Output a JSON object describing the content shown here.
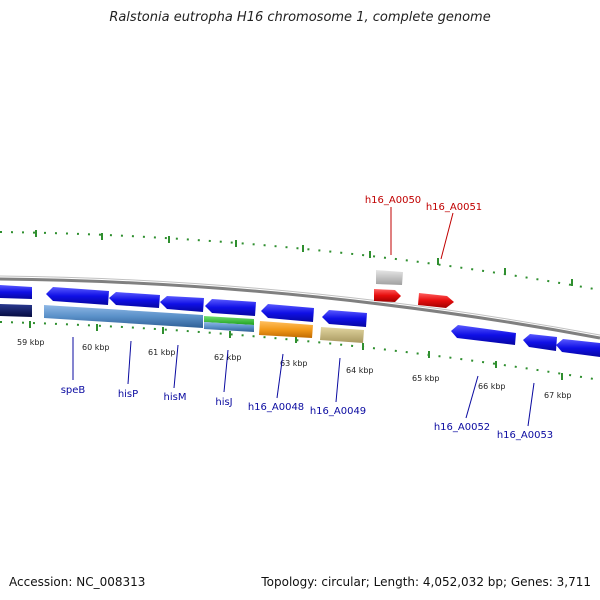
{
  "title": "Ralstonia eutropha H16 chromosome 1, complete genome",
  "footer": {
    "accession": "Accession: NC_008313",
    "summary": "Topology: circular; Length: 4,052,032 bp; Genes: 3,711"
  },
  "ruler": {
    "unit": "kbp",
    "labels": [
      "59 kbp",
      "60 kbp",
      "61 kbp",
      "62 kbp",
      "63 kbp",
      "64 kbp",
      "65 kbp",
      "66 kbp",
      "67 kbp"
    ]
  },
  "genes_reverse_strand": [
    "speB",
    "hisP",
    "hisM",
    "hisJ",
    "h16_A0048",
    "h16_A0049",
    "h16_A0052",
    "h16_A0053"
  ],
  "genes_forward_strand": [
    "h16_A0050",
    "h16_A0051"
  ],
  "colors": {
    "backbone": "#808080",
    "reverse_gene": "#1010e6",
    "forward_gene": "#e60d0d",
    "tick": "#2f8f2f",
    "label_blue": "#0a0aa0",
    "label_red": "#c00000",
    "operon_blue": "#5a90c8",
    "his_green": "#30c030",
    "amber": "#f39a1a",
    "khaki": "#c8b878",
    "grey_feature": "#c8c8c8",
    "navy": "#0a1a60"
  }
}
